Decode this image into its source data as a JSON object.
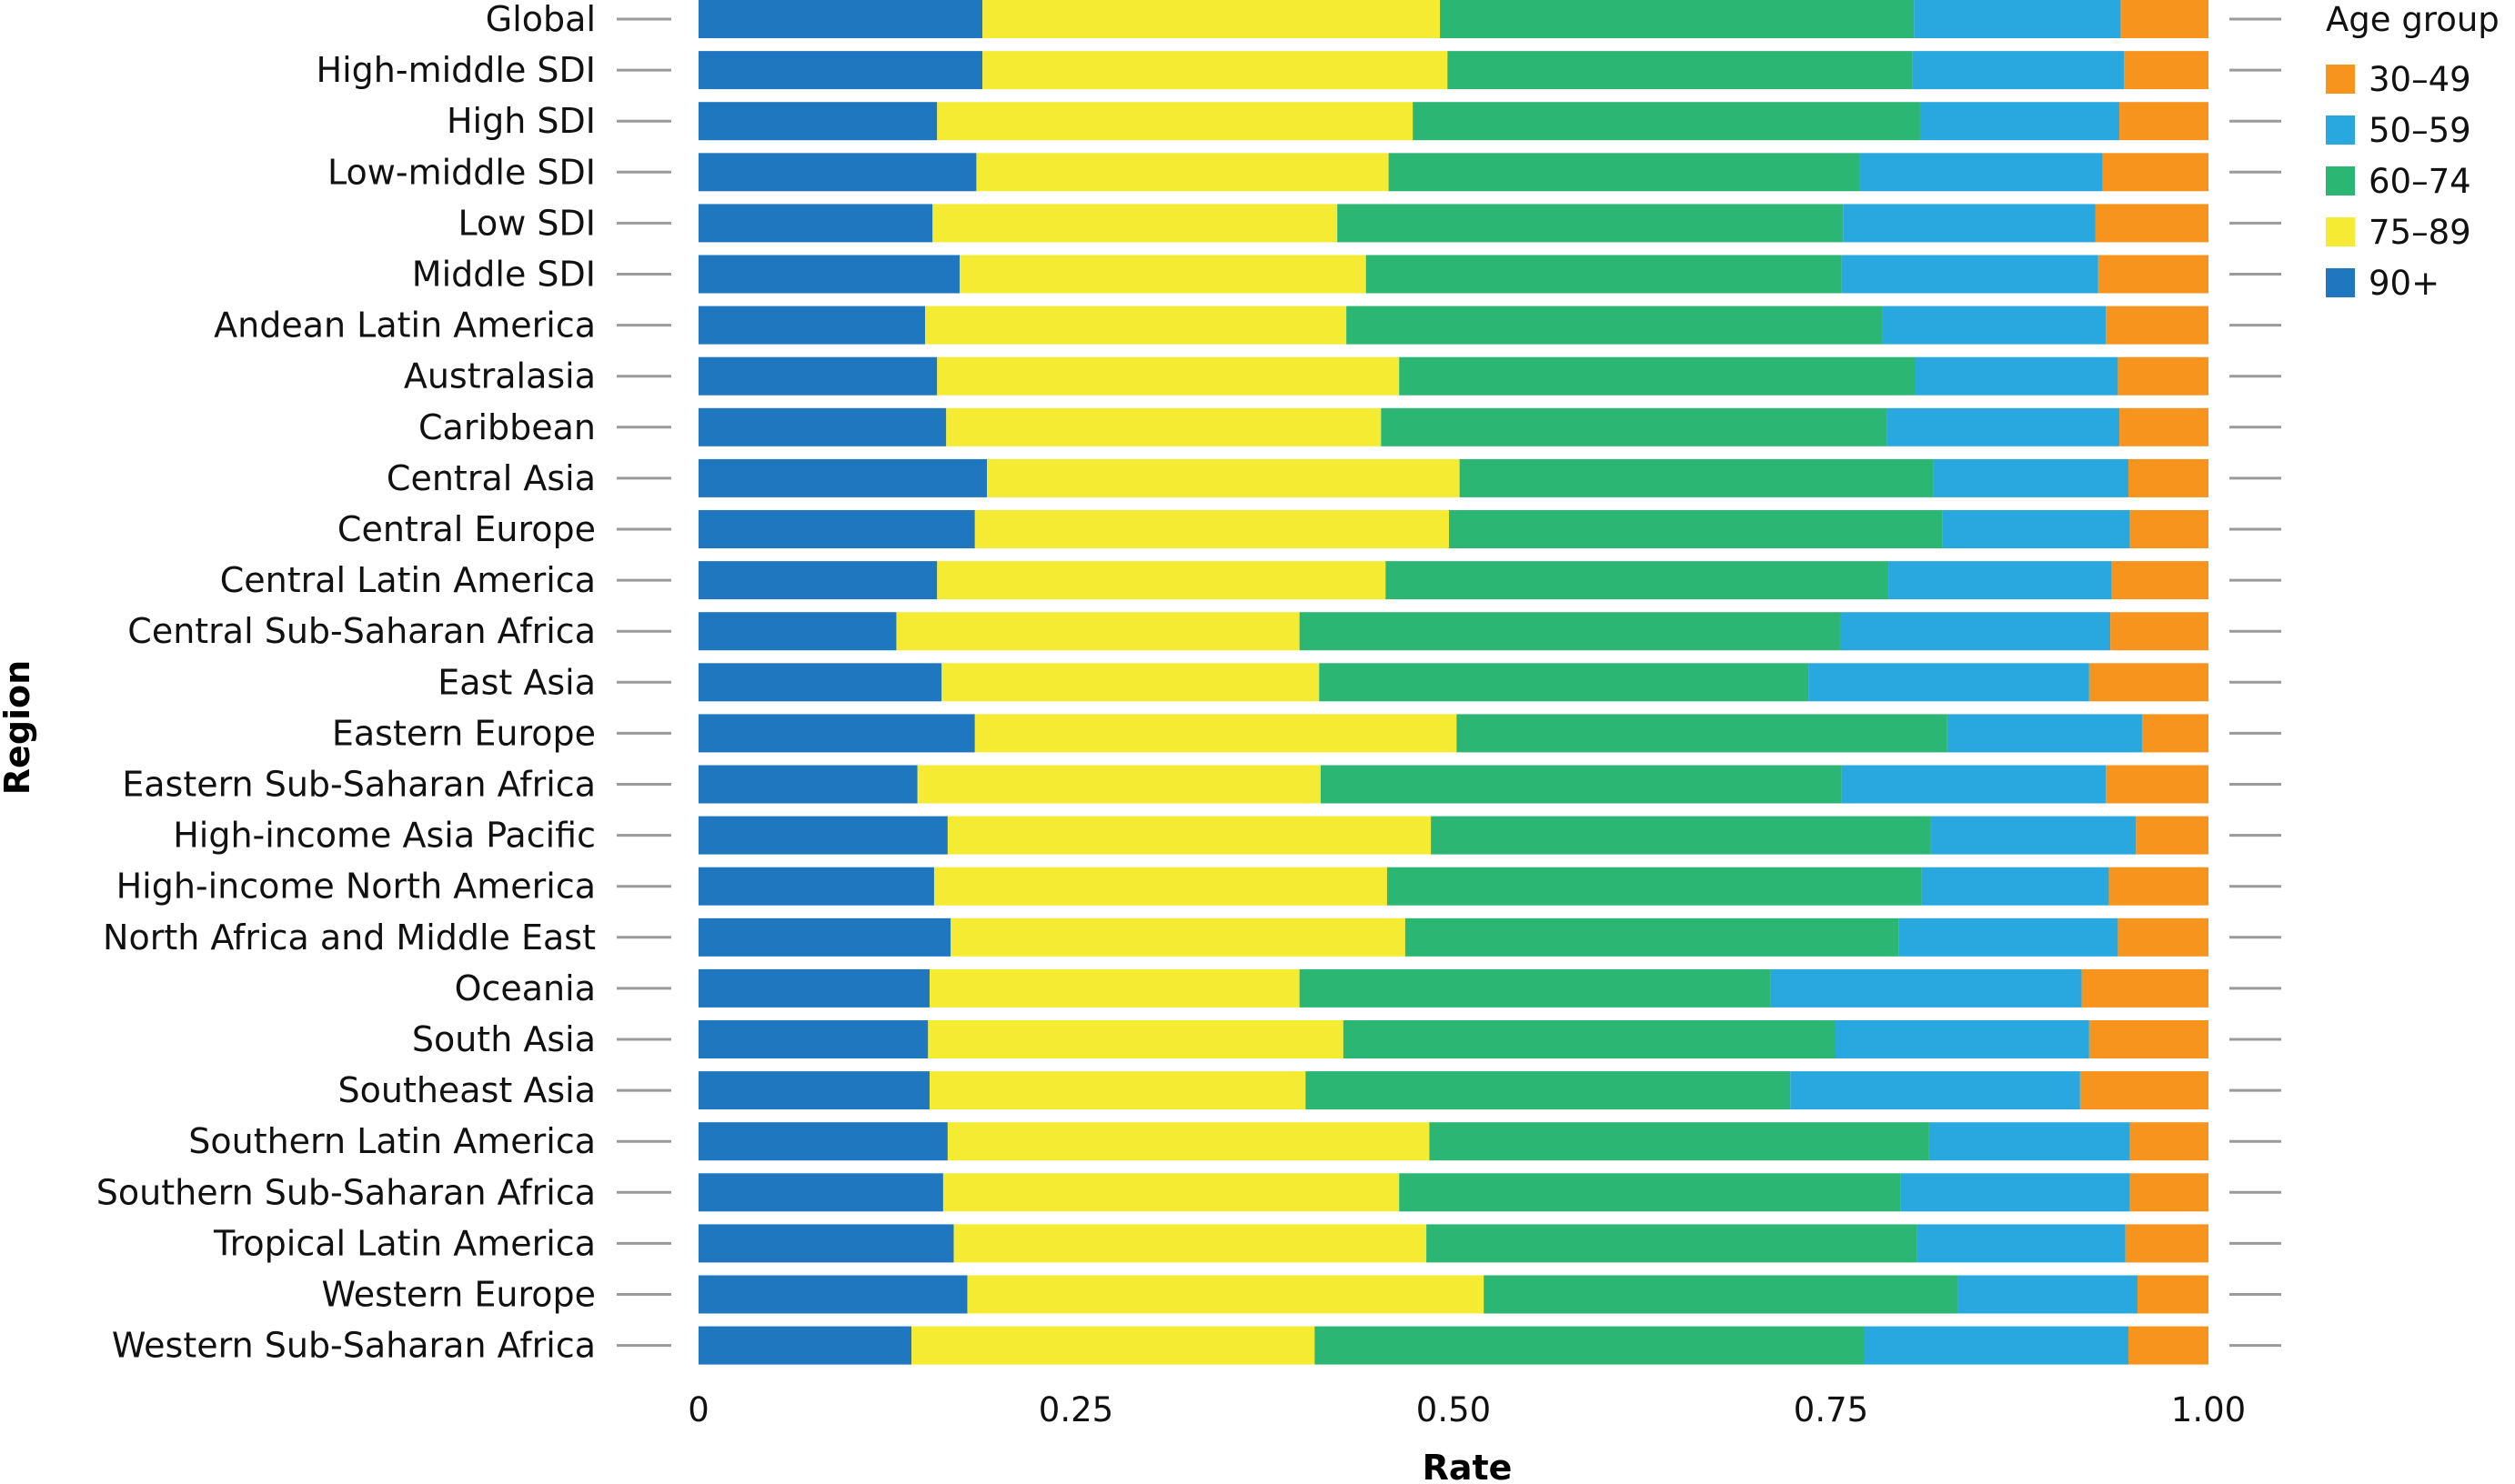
{
  "chart_data": {
    "type": "bar",
    "orientation": "horizontal",
    "stacked": true,
    "xlabel": "Rate",
    "ylabel": "Region",
    "xlim": [
      0,
      1
    ],
    "x_ticks": [
      0,
      0.25,
      0.5,
      0.75,
      1.0
    ],
    "x_tick_labels": [
      "0",
      "0.25",
      "0.50",
      "0.75",
      "1.00"
    ],
    "grid": false,
    "legend": {
      "title": "Age group",
      "position": "right-top",
      "entries": [
        "30–49",
        "50–59",
        "60–74",
        "75–89",
        "90+"
      ]
    },
    "categories": [
      "Global",
      "High-middle SDI",
      "High SDI",
      "Low-middle SDI",
      "Low SDI",
      "Middle SDI",
      "Andean Latin America",
      "Australasia",
      "Caribbean",
      "Central Asia",
      "Central Europe",
      "Central Latin America",
      "Central Sub-Saharan Africa",
      "East Asia",
      "Eastern Europe",
      "Eastern Sub-Saharan Africa",
      "High-income Asia Pacific",
      "High-income North America",
      "North Africa and Middle East",
      "Oceania",
      "South Asia",
      "Southeast Asia",
      "Southern Latin America",
      "Southern Sub-Saharan Africa",
      "Tropical Latin America",
      "Western Europe",
      "Western Sub-Saharan Africa"
    ],
    "series": [
      {
        "name": "90+",
        "color": "#1f77c0",
        "values": [
          0.188,
          0.188,
          0.158,
          0.184,
          0.155,
          0.173,
          0.15,
          0.158,
          0.164,
          0.191,
          0.183,
          0.158,
          0.131,
          0.161,
          0.183,
          0.145,
          0.165,
          0.156,
          0.167,
          0.153,
          0.152,
          0.153,
          0.165,
          0.162,
          0.169,
          0.178,
          0.141
        ]
      },
      {
        "name": "75–89",
        "color": "#f5eb33",
        "values": [
          0.303,
          0.308,
          0.315,
          0.273,
          0.268,
          0.269,
          0.279,
          0.306,
          0.288,
          0.313,
          0.314,
          0.297,
          0.267,
          0.25,
          0.319,
          0.267,
          0.32,
          0.3,
          0.301,
          0.245,
          0.275,
          0.249,
          0.319,
          0.302,
          0.313,
          0.342,
          0.267
        ]
      },
      {
        "name": "60–74",
        "color": "#2bb673",
        "values": [
          0.314,
          0.308,
          0.336,
          0.312,
          0.335,
          0.315,
          0.355,
          0.342,
          0.335,
          0.314,
          0.327,
          0.333,
          0.358,
          0.324,
          0.325,
          0.345,
          0.331,
          0.354,
          0.327,
          0.312,
          0.326,
          0.321,
          0.331,
          0.332,
          0.325,
          0.314,
          0.364
        ]
      },
      {
        "name": "50–59",
        "color": "#29a8e0",
        "values": [
          0.137,
          0.14,
          0.132,
          0.161,
          0.167,
          0.17,
          0.148,
          0.134,
          0.154,
          0.129,
          0.124,
          0.148,
          0.179,
          0.186,
          0.129,
          0.175,
          0.136,
          0.124,
          0.145,
          0.206,
          0.168,
          0.192,
          0.133,
          0.152,
          0.138,
          0.119,
          0.175
        ]
      },
      {
        "name": "30–49",
        "color": "#f7941d",
        "values": [
          0.058,
          0.056,
          0.059,
          0.07,
          0.075,
          0.073,
          0.068,
          0.06,
          0.059,
          0.053,
          0.052,
          0.064,
          0.065,
          0.079,
          0.044,
          0.068,
          0.048,
          0.066,
          0.06,
          0.084,
          0.079,
          0.085,
          0.052,
          0.052,
          0.055,
          0.047,
          0.053
        ]
      }
    ]
  }
}
